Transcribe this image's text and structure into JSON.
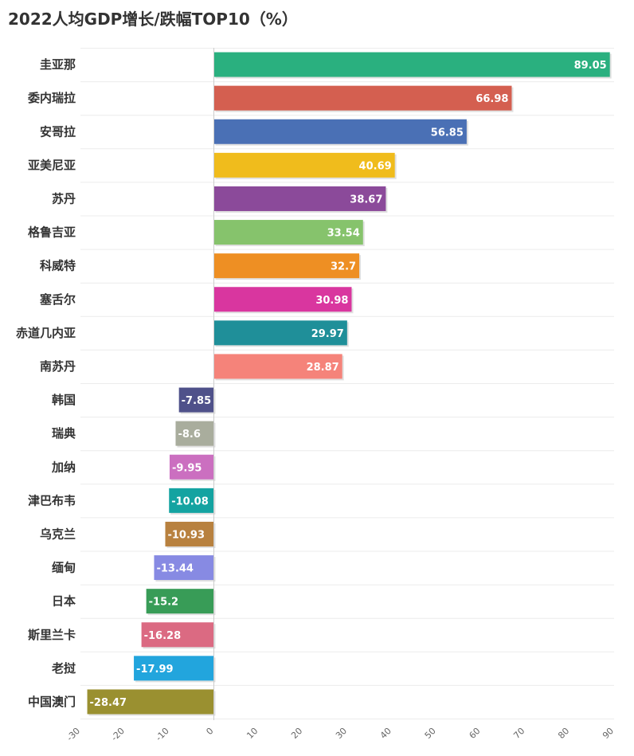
{
  "title": "2022人均GDP增长/跌幅TOP10（%）",
  "chart_data": {
    "type": "bar",
    "orientation": "horizontal",
    "title": "2022人均GDP增长/跌幅TOP10（%）",
    "xlim": [
      -30,
      90
    ],
    "x_ticks": [
      "-30",
      "-20",
      "-10",
      "0",
      "10",
      "20",
      "30",
      "40",
      "50",
      "60",
      "70",
      "80",
      "90"
    ],
    "grid": true,
    "categories": [
      "圭亚那",
      "委内瑞拉",
      "安哥拉",
      "亚美尼亚",
      "苏丹",
      "格鲁吉亚",
      "科威特",
      "塞舌尔",
      "赤道几内亚",
      "南苏丹",
      "韩国",
      "瑞典",
      "加纳",
      "津巴布韦",
      "乌克兰",
      "缅甸",
      "日本",
      "斯里兰卡",
      "老挝",
      "中国澳门"
    ],
    "values": [
      89.05,
      66.98,
      56.85,
      40.69,
      38.67,
      33.54,
      32.7,
      30.98,
      29.97,
      28.87,
      -7.85,
      -8.6,
      -9.95,
      -10.08,
      -10.93,
      -13.44,
      -15.2,
      -16.28,
      -17.99,
      -28.47
    ],
    "value_labels": [
      "89.05",
      "66.98",
      "56.85",
      "40.69",
      "38.67",
      "33.54",
      "32.7",
      "30.98",
      "29.97",
      "28.87",
      "-7.85",
      "-8.6",
      "-9.95",
      "-10.08",
      "-10.93",
      "-13.44",
      "-15.2",
      "-16.28",
      "-17.99",
      "-28.47"
    ],
    "colors": [
      "#2ab07f",
      "#d45f50",
      "#4a70b5",
      "#f0bc1c",
      "#8b4a9a",
      "#86c36c",
      "#ee8f23",
      "#d9369f",
      "#1f8f99",
      "#f5837a",
      "#4f518a",
      "#a9ad9d",
      "#cb6fc0",
      "#14a3a1",
      "#b8813f",
      "#878ae3",
      "#389c57",
      "#db6a82",
      "#22a5dd",
      "#9a9030"
    ]
  }
}
